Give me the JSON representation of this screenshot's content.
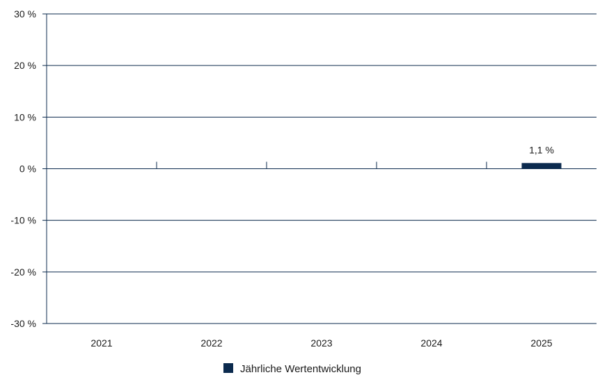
{
  "chart_data": {
    "type": "bar",
    "categories": [
      "2021",
      "2022",
      "2023",
      "2024",
      "2025"
    ],
    "series": [
      {
        "name": "Jährliche Wertentwicklung",
        "values": [
          null,
          null,
          null,
          null,
          1.1
        ],
        "data_labels": [
          "",
          "",
          "",
          "",
          "1,1 %"
        ]
      }
    ],
    "yticks": [
      30,
      20,
      10,
      0,
      -10,
      -20,
      -30
    ],
    "ytick_labels": [
      "30 %",
      "20 %",
      "10 %",
      "0 %",
      "-10 %",
      "-20 %",
      "-30 %"
    ],
    "ylim": [
      -30,
      30
    ],
    "grid": true,
    "legend_position": "bottom-center",
    "colors": {
      "bar": "#0b2a4e",
      "grid": "#0b2a4e",
      "text": "#1a1a1a"
    }
  }
}
